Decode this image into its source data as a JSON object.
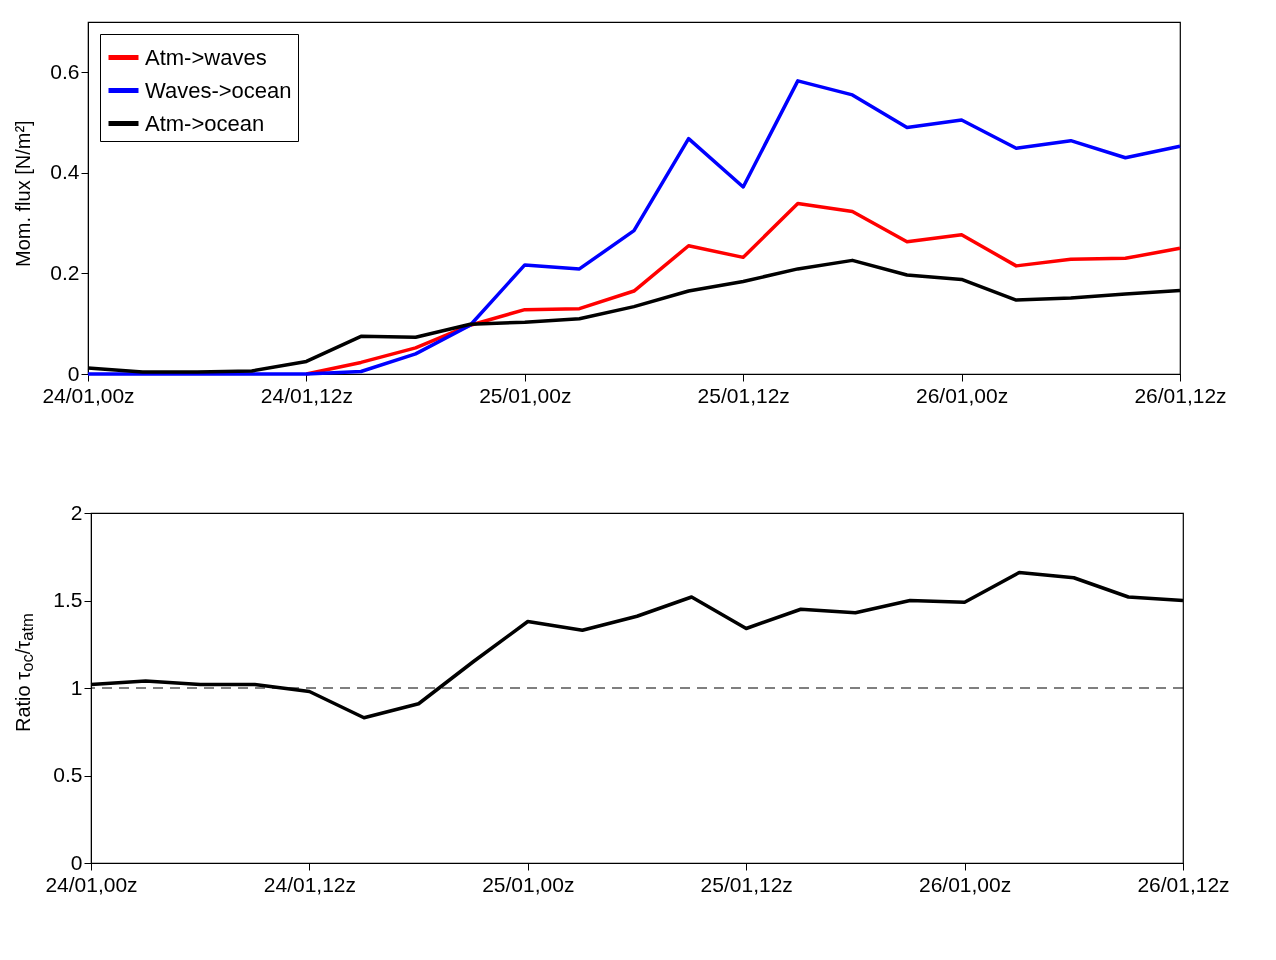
{
  "chart_data": [
    {
      "type": "line",
      "ylabel": "Mom. flux [N/m²]",
      "legend": "top left",
      "grid": false,
      "categories": [
        "24/01,00z",
        null,
        null,
        null,
        "24/01,12z",
        null,
        null,
        null,
        "25/01,00z",
        null,
        null,
        null,
        "25/01,12z",
        null,
        null,
        null,
        "26/01,00z",
        null,
        null,
        null,
        "26/01,12z"
      ],
      "ylim": [
        0,
        0.7
      ],
      "yticks": [
        0,
        0.2,
        0.4,
        0.6
      ],
      "series": [
        {
          "name": "Atm->waves",
          "color": "#ff0000",
          "values": [
            null,
            null,
            null,
            null,
            0,
            0.023,
            0.052,
            0.097,
            0.128,
            0.13,
            0.165,
            0.255,
            0.232,
            0.339,
            0.323,
            0.263,
            0.277,
            0.215,
            0.228,
            0.23,
            0.25
          ]
        },
        {
          "name": "Waves->ocean",
          "color": "#0000ff",
          "values": [
            0,
            0,
            0,
            0,
            0,
            0.005,
            0.04,
            0.097,
            0.217,
            0.209,
            0.285,
            0.468,
            0.372,
            0.583,
            0.555,
            0.49,
            0.505,
            0.449,
            0.464,
            0.43,
            0.453
          ]
        },
        {
          "name": "Atm->ocean",
          "color": "#000000",
          "values": [
            0.012,
            0.004,
            0.004,
            0.006,
            0.025,
            0.075,
            0.073,
            0.099,
            0.103,
            0.11,
            0.134,
            0.165,
            0.184,
            0.209,
            0.226,
            0.197,
            0.188,
            0.147,
            0.151,
            0.159,
            0.166
          ]
        }
      ]
    },
    {
      "type": "line",
      "ylabel": "Ratio τ$_{oc}$/τ$_{atm}$",
      "grid": false,
      "categories": [
        "24/01,00z",
        null,
        null,
        null,
        "24/01,12z",
        null,
        null,
        null,
        "25/01,00z",
        null,
        null,
        null,
        "25/01,12z",
        null,
        null,
        null,
        "26/01,00z",
        null,
        null,
        null,
        "26/01,12z"
      ],
      "ylim": [
        0,
        2
      ],
      "yticks": [
        0,
        0.5,
        1,
        1.5,
        2
      ],
      "ref_lines": [
        {
          "axis": "y",
          "value": 1,
          "color": "#000000",
          "line_style": "dashed"
        }
      ],
      "series": [
        {
          "color": "#000000",
          "values": [
            1.02,
            1.04,
            1.02,
            1.02,
            0.98,
            0.83,
            0.91,
            1.15,
            1.38,
            1.33,
            1.41,
            1.52,
            1.34,
            1.45,
            1.43,
            1.5,
            1.49,
            1.66,
            1.63,
            1.52,
            1.5
          ]
        }
      ]
    }
  ]
}
